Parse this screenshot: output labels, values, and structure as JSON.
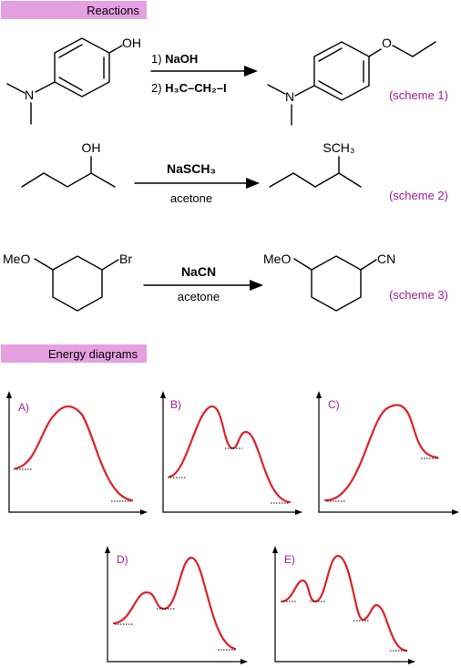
{
  "headers": {
    "reactions": "Reactions",
    "energy": "Energy diagrams"
  },
  "scheme1": {
    "label": "(scheme 1)",
    "reactant_oh": "OH",
    "reactant_n": "N",
    "product_n": "N",
    "product_o": "O",
    "step1_prefix": "1) ",
    "step1_reagent": "NaOH",
    "step2_prefix": "2) ",
    "step2_reagent": "H₃C–CH₂–I"
  },
  "scheme2": {
    "label": "(scheme 2)",
    "reactant_oh": "OH",
    "reagent": "NaSCH₃",
    "solvent": "acetone",
    "product_sub": "SCH₃"
  },
  "scheme3": {
    "label": "(scheme 3)",
    "reactant_meo": "MeO",
    "reactant_br": "Br",
    "reagent": "NaCN",
    "solvent": "acetone",
    "product_meo": "MeO",
    "product_cn": "CN"
  },
  "energy_diagrams": [
    {
      "label": "A)",
      "shape": "one-step, uphill start, ends lower"
    },
    {
      "label": "B)",
      "shape": "two-step, intermediate"
    },
    {
      "label": "C)",
      "shape": "one-step, ends higher"
    },
    {
      "label": "D)",
      "shape": "two-step, second barrier higher"
    },
    {
      "label": "E)",
      "shape": "three-step, two intermediates"
    }
  ],
  "colors": {
    "header_bg": "#e5a0e2",
    "scheme_label": "#a020a0",
    "curve": "#e0202a"
  }
}
